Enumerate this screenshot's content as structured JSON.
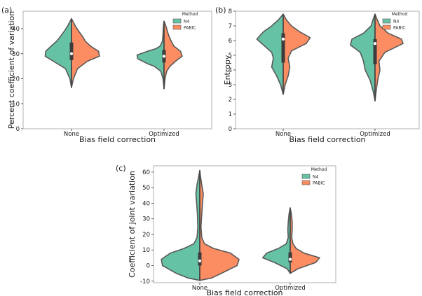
{
  "colors": {
    "n4": "#66c2a5",
    "pabic": "#fc8d62",
    "violin_edge": "#595959",
    "box": "#3c3c3c"
  },
  "chart_data": [
    {
      "type": "violin",
      "panel_label": "(a)",
      "xlabel": "Bias field correction",
      "ylabel": "Percent coefficient of variation",
      "categories": [
        "None",
        "Optimized"
      ],
      "ylim": [
        0,
        47
      ],
      "yticks": [
        0,
        10,
        20,
        30,
        40
      ],
      "legend": {
        "title": "Method",
        "entries": [
          "N4",
          "PABIC"
        ],
        "location": "top-right"
      },
      "violins": [
        {
          "category": "None",
          "median": 30,
          "q1": 27.5,
          "q3": 34.5,
          "n4": [
            [
              16.5,
              0
            ],
            [
              20,
              0.05
            ],
            [
              24,
              0.18
            ],
            [
              27,
              0.55
            ],
            [
              29,
              0.8
            ],
            [
              31,
              0.78
            ],
            [
              33,
              0.62
            ],
            [
              35,
              0.45
            ],
            [
              37,
              0.33
            ],
            [
              39,
              0.22
            ],
            [
              41,
              0.12
            ],
            [
              43,
              0.04
            ],
            [
              44,
              0
            ]
          ],
          "pabic": [
            [
              16.5,
              0
            ],
            [
              20,
              0.06
            ],
            [
              24,
              0.18
            ],
            [
              27,
              0.48
            ],
            [
              29,
              0.85
            ],
            [
              31,
              0.82
            ],
            [
              33,
              0.58
            ],
            [
              35,
              0.42
            ],
            [
              37,
              0.33
            ],
            [
              39,
              0.22
            ],
            [
              41,
              0.12
            ],
            [
              43,
              0.04
            ],
            [
              44,
              0
            ]
          ]
        },
        {
          "category": "Optimized",
          "median": 29,
          "q1": 26.5,
          "q3": 31.5,
          "n4": [
            [
              16,
              0
            ],
            [
              20,
              0.03
            ],
            [
              23,
              0.1
            ],
            [
              25,
              0.3
            ],
            [
              26,
              0.5
            ],
            [
              28,
              0.8
            ],
            [
              29.5,
              0.82
            ],
            [
              31,
              0.5
            ],
            [
              32,
              0.25
            ],
            [
              33,
              0.12
            ],
            [
              35,
              0.05
            ],
            [
              38,
              0.03
            ],
            [
              41,
              0.02
            ],
            [
              43,
              0
            ]
          ],
          "pabic": [
            [
              16,
              0
            ],
            [
              20,
              0.03
            ],
            [
              23,
              0.08
            ],
            [
              25,
              0.18
            ],
            [
              27,
              0.35
            ],
            [
              29,
              0.55
            ],
            [
              31,
              0.5
            ],
            [
              33,
              0.3
            ],
            [
              35,
              0.22
            ],
            [
              37,
              0.15
            ],
            [
              39,
              0.1
            ],
            [
              41,
              0.06
            ],
            [
              43,
              0
            ]
          ]
        }
      ]
    },
    {
      "type": "violin",
      "panel_label": "(b)",
      "xlabel": "Bias field correction",
      "ylabel": "Entropy",
      "categories": [
        "None",
        "Optimized"
      ],
      "ylim": [
        0,
        8
      ],
      "yticks": [
        0,
        1,
        2,
        3,
        4,
        5,
        6,
        7,
        8
      ],
      "legend": {
        "title": "Method",
        "entries": [
          "N4",
          "PABIC"
        ],
        "location": "top-right"
      },
      "violins": [
        {
          "category": "None",
          "median": 6.1,
          "q1": 4.5,
          "q3": 6.5,
          "n4": [
            [
              2.35,
              0
            ],
            [
              3,
              0.08
            ],
            [
              3.6,
              0.2
            ],
            [
              4.2,
              0.35
            ],
            [
              4.8,
              0.3
            ],
            [
              5.2,
              0.35
            ],
            [
              5.6,
              0.55
            ],
            [
              6.1,
              0.8
            ],
            [
              6.6,
              0.6
            ],
            [
              7,
              0.35
            ],
            [
              7.4,
              0.15
            ],
            [
              7.8,
              0
            ]
          ],
          "pabic": [
            [
              2.35,
              0
            ],
            [
              3,
              0.06
            ],
            [
              3.6,
              0.15
            ],
            [
              4.2,
              0.2
            ],
            [
              4.8,
              0.15
            ],
            [
              5.3,
              0.25
            ],
            [
              5.8,
              0.7
            ],
            [
              6.2,
              0.82
            ],
            [
              6.6,
              0.5
            ],
            [
              7,
              0.25
            ],
            [
              7.4,
              0.1
            ],
            [
              7.8,
              0
            ]
          ]
        },
        {
          "category": "Optimized",
          "median": 5.8,
          "q1": 4.4,
          "q3": 6.1,
          "n4": [
            [
              1.9,
              0
            ],
            [
              2.5,
              0.05
            ],
            [
              3.3,
              0.15
            ],
            [
              4,
              0.3
            ],
            [
              4.6,
              0.35
            ],
            [
              5.2,
              0.45
            ],
            [
              5.7,
              0.75
            ],
            [
              6.1,
              0.7
            ],
            [
              6.5,
              0.35
            ],
            [
              7,
              0.12
            ],
            [
              7.5,
              0.05
            ],
            [
              7.8,
              0
            ]
          ],
          "pabic": [
            [
              1.9,
              0
            ],
            [
              2.5,
              0.03
            ],
            [
              3.3,
              0.08
            ],
            [
              4,
              0.15
            ],
            [
              4.6,
              0.12
            ],
            [
              5.2,
              0.3
            ],
            [
              5.8,
              0.85
            ],
            [
              6.1,
              0.8
            ],
            [
              6.5,
              0.4
            ],
            [
              7,
              0.15
            ],
            [
              7.5,
              0.05
            ],
            [
              7.8,
              0
            ]
          ]
        }
      ]
    },
    {
      "type": "violin",
      "panel_label": "(c)",
      "xlabel": "Bias field correction",
      "ylabel": "Coefficient of joint variation",
      "categories": [
        "None",
        "Optimized"
      ],
      "ylim": [
        -11,
        64
      ],
      "yticks": [
        -10,
        0,
        10,
        20,
        30,
        40,
        50,
        60
      ],
      "legend": {
        "title": "Method",
        "entries": [
          "N4",
          "PABIC"
        ],
        "location": "top-right"
      },
      "violins": [
        {
          "category": "None",
          "median": 3,
          "q1": 0,
          "q3": 8.5,
          "n4": [
            [
              -9.5,
              0
            ],
            [
              -8,
              0.3
            ],
            [
              -5,
              0.6
            ],
            [
              0,
              0.95
            ],
            [
              4,
              0.98
            ],
            [
              8,
              0.75
            ],
            [
              11,
              0.4
            ],
            [
              14,
              0.15
            ],
            [
              18,
              0.07
            ],
            [
              25,
              0.05
            ],
            [
              33,
              0.06
            ],
            [
              40,
              0.08
            ],
            [
              46,
              0.1
            ],
            [
              52,
              0.07
            ],
            [
              57,
              0.03
            ],
            [
              61,
              0
            ]
          ],
          "pabic": [
            [
              -9.5,
              0
            ],
            [
              -8,
              0.3
            ],
            [
              -5,
              0.55
            ],
            [
              0,
              0.95
            ],
            [
              4,
              1.0
            ],
            [
              8,
              0.78
            ],
            [
              11,
              0.35
            ],
            [
              14,
              0.12
            ],
            [
              18,
              0.05
            ],
            [
              25,
              0.03
            ],
            [
              33,
              0.05
            ],
            [
              40,
              0.07
            ],
            [
              46,
              0.09
            ],
            [
              52,
              0.05
            ],
            [
              57,
              0.02
            ],
            [
              61,
              0
            ]
          ]
        },
        {
          "category": "Optimized",
          "median": 4,
          "q1": 2,
          "q3": 8.5,
          "n4": [
            [
              -5,
              0
            ],
            [
              -2,
              0.08
            ],
            [
              2,
              0.4
            ],
            [
              5,
              0.7
            ],
            [
              8,
              0.6
            ],
            [
              11,
              0.3
            ],
            [
              14,
              0.1
            ],
            [
              18,
              0.05
            ],
            [
              23,
              0.06
            ],
            [
              28,
              0.05
            ],
            [
              33,
              0.03
            ],
            [
              37,
              0
            ]
          ],
          "pabic": [
            [
              -5,
              0
            ],
            [
              -2,
              0.2
            ],
            [
              2,
              0.65
            ],
            [
              5,
              0.75
            ],
            [
              8,
              0.35
            ],
            [
              11,
              0.15
            ],
            [
              14,
              0.07
            ],
            [
              18,
              0.04
            ],
            [
              23,
              0.05
            ],
            [
              28,
              0.05
            ],
            [
              33,
              0.03
            ],
            [
              37,
              0
            ]
          ]
        }
      ]
    }
  ]
}
